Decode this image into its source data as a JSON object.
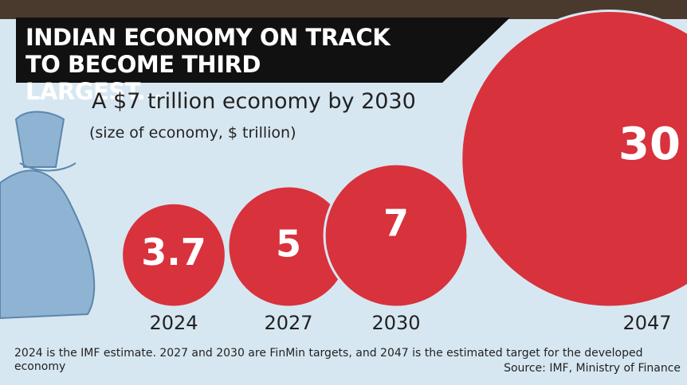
{
  "chart_data": {
    "type": "bubble",
    "title": "INDIAN ECONOMY ON TRACK TO BECOME THIRD LARGEST...",
    "subtitle": "A $7 trillion economy by 2030",
    "unit_note": "(size of economy, $ trillion)",
    "categories": [
      "2024",
      "2027",
      "2030",
      "2047"
    ],
    "values": [
      3.7,
      5,
      7,
      30
    ],
    "color": "#d8323c",
    "footnote": "2024 is the IMF estimate. 2027 and 2030 are FinMin targets, and 2047 is the estimated target for the developed economy",
    "source": "Source: IMF, Ministry of Finance"
  }
}
